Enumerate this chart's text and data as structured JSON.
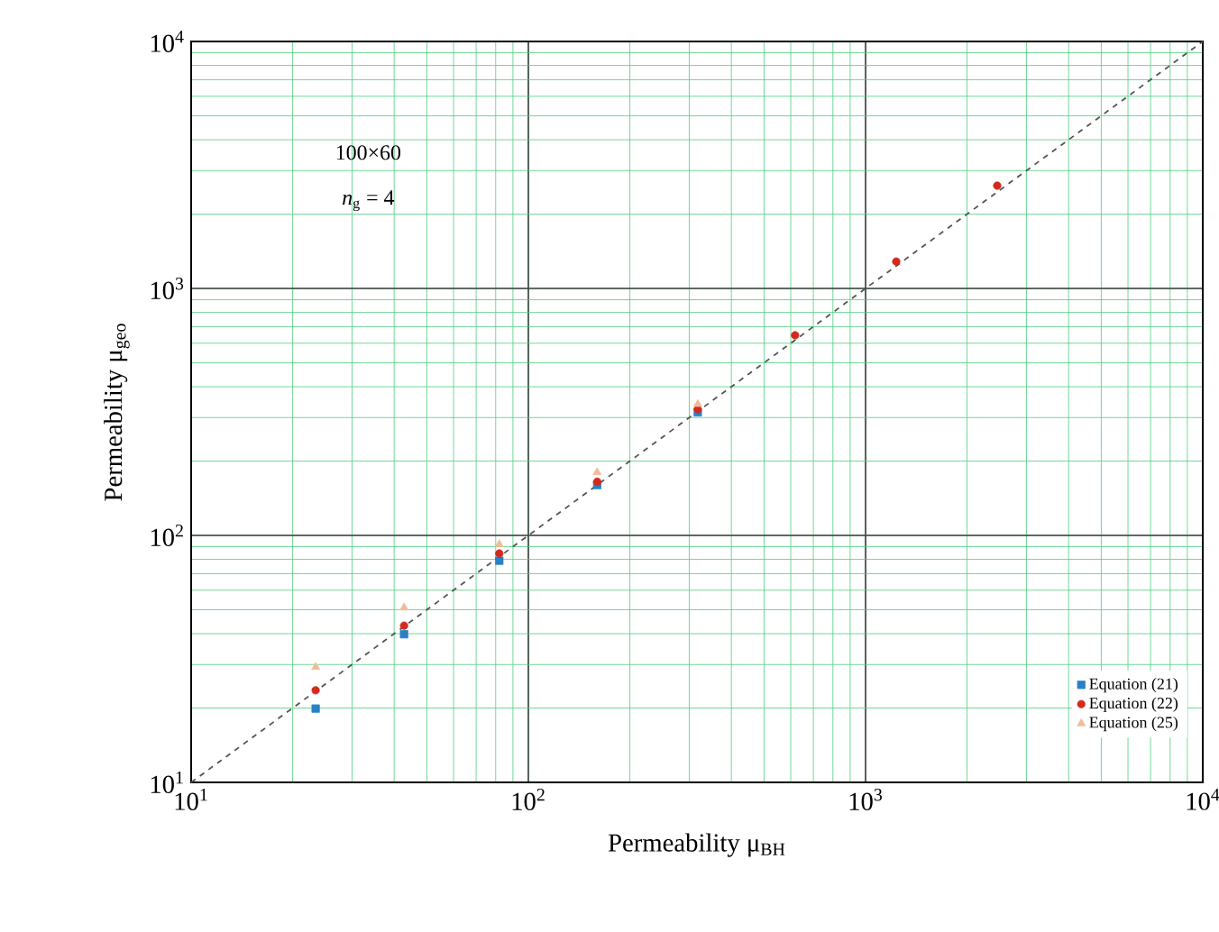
{
  "chart_data": {
    "type": "scatter",
    "xlabel": "Permeability  μ$_{BH}$",
    "ylabel": "Permeability  μ$_{geo}$",
    "annotations": [
      "100×60",
      "*n*$_{g}$ = 4"
    ],
    "x": [
      23.4,
      42.8,
      82,
      160,
      318,
      618,
      1233,
      2457
    ],
    "series": [
      {
        "name": "Equation (21)",
        "color": "#2a80c4",
        "marker": "square",
        "values": [
          19.9,
          39.8,
          79,
          160,
          315,
          null,
          null,
          null
        ]
      },
      {
        "name": "Equation (22)",
        "color": "#d42a1e",
        "marker": "circle",
        "values": [
          23.6,
          43.1,
          84.5,
          165,
          324,
          646,
          1285,
          2606
        ]
      },
      {
        "name": "Equation (25)",
        "color": "#f0bc98",
        "marker": "triangle",
        "values": [
          29.3,
          51,
          92,
          180,
          340,
          null,
          null,
          null
        ]
      },
      {
        "type": "line",
        "x": [
          10,
          10000
        ],
        "values": [
          10,
          10000
        ],
        "color": "#555555",
        "line_style": "dashed",
        "marker": "none"
      }
    ],
    "log": "xy",
    "xlim": [
      10,
      10000
    ],
    "ylim": [
      10,
      10000
    ],
    "xticks": [
      {
        "value": 10,
        "label": "10$^{1}$"
      },
      {
        "value": 100,
        "label": "10$^{2}$"
      },
      {
        "value": 1000,
        "label": "10$^{3}$"
      },
      {
        "value": 10000,
        "label": "10$^{4}$"
      }
    ],
    "yticks": [
      {
        "value": 10,
        "label": "10$^{1}$"
      },
      {
        "value": 100,
        "label": "10$^{2}$"
      },
      {
        "value": 1000,
        "label": "10$^{3}$"
      },
      {
        "value": 10000,
        "label": "10$^{4}$"
      }
    ],
    "grid": true,
    "legend": "bottom right"
  }
}
